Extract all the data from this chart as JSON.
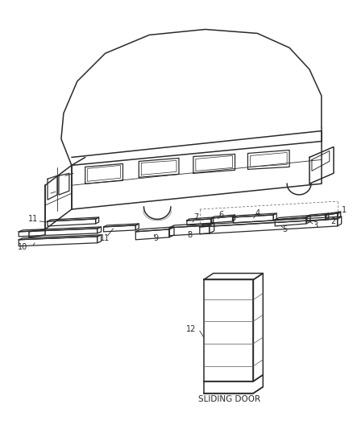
{
  "background_color": "#ffffff",
  "fig_width": 4.38,
  "fig_height": 5.33,
  "dpi": 100,
  "sliding_door_label": "SLIDING DOOR",
  "line_color": "#2a2a2a",
  "label_fontsize": 7.0,
  "sliding_label_fontsize": 7.5
}
